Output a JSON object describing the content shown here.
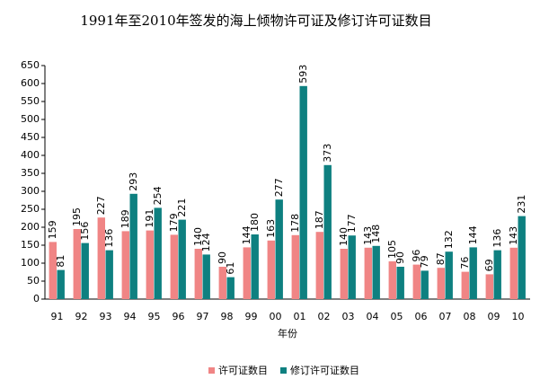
{
  "chart_data": {
    "type": "bar",
    "title": "1991年至2010年签发的海上倾物许可证及修订许可证数目",
    "x_label": "年份",
    "categories": [
      "91",
      "92",
      "93",
      "94",
      "95",
      "96",
      "97",
      "98",
      "99",
      "00",
      "01",
      "02",
      "03",
      "04",
      "05",
      "06",
      "07",
      "08",
      "09",
      "10"
    ],
    "series": [
      {
        "name": "许可证数目",
        "color": "#f08585",
        "values": [
          159,
          195,
          227,
          189,
          191,
          179,
          140,
          90,
          144,
          163,
          178,
          187,
          140,
          143,
          105,
          96,
          87,
          76,
          69,
          143
        ]
      },
      {
        "name": "修订许可证数目",
        "color": "#0e8080",
        "values": [
          81,
          156,
          136,
          293,
          254,
          221,
          124,
          61,
          180,
          277,
          593,
          373,
          177,
          148,
          90,
          79,
          132,
          144,
          136,
          231
        ]
      }
    ],
    "ylim": [
      0,
      650
    ],
    "yticks": [
      0,
      50,
      100,
      150,
      200,
      250,
      300,
      350,
      400,
      450,
      500,
      550,
      600,
      650
    ],
    "legend": "bottom"
  }
}
